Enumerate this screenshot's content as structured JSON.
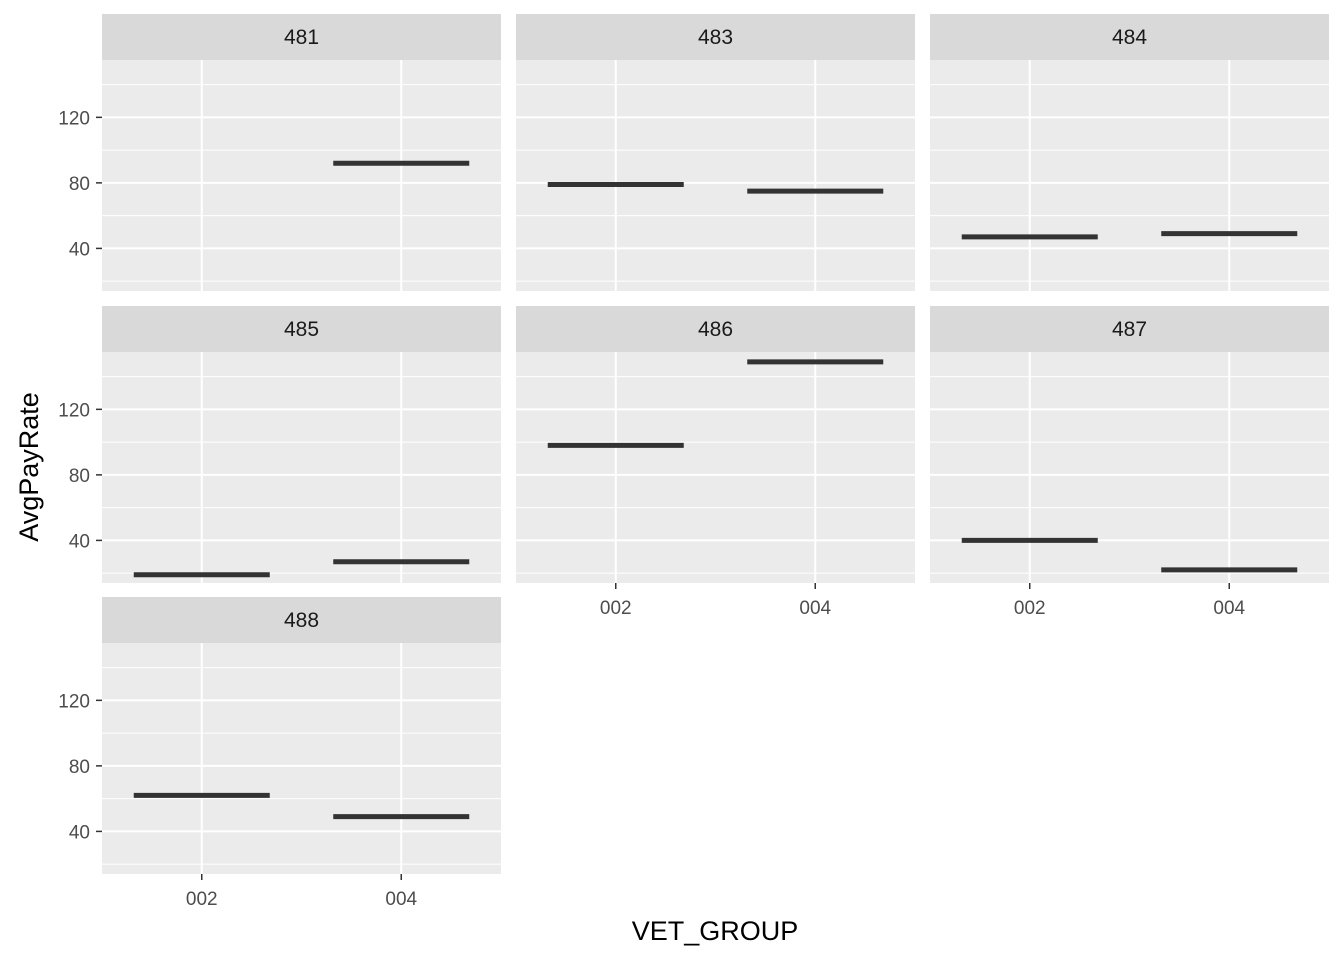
{
  "chart_data": {
    "type": "crossbar-facet",
    "xlabel": "VET_GROUP",
    "ylabel": "AvgPayRate",
    "categories": [
      "002",
      "004"
    ],
    "ylim": [
      14,
      155
    ],
    "yticks": [
      40,
      80,
      120
    ],
    "grid": true,
    "panels": [
      {
        "label": "481",
        "values": [
          null,
          92
        ]
      },
      {
        "label": "483",
        "values": [
          79,
          75
        ]
      },
      {
        "label": "484",
        "values": [
          47,
          49
        ]
      },
      {
        "label": "485",
        "values": [
          19,
          27
        ]
      },
      {
        "label": "486",
        "values": [
          98,
          149
        ]
      },
      {
        "label": "487",
        "values": [
          40,
          22
        ]
      },
      {
        "label": "488",
        "values": [
          62,
          49
        ]
      }
    ],
    "colors": {
      "panel_background": "#EBEBEB",
      "strip_background": "#D9D9D9",
      "gridline": "#FFFFFF",
      "mark": "#333333",
      "tick_text": "#4D4D4D",
      "tick_mark": "#333333"
    }
  }
}
